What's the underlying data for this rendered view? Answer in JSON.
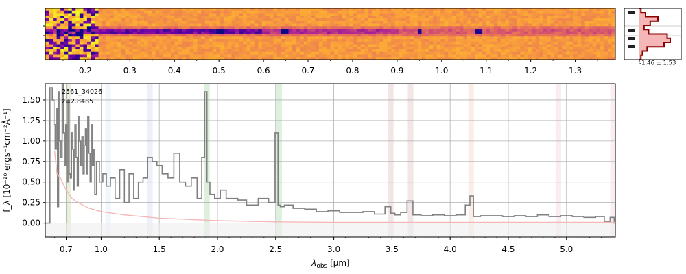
{
  "chart_data": [
    {
      "type": "heatmap",
      "name": "2d-spectrum",
      "x_unit": "um",
      "x_ticks": [
        "0.2",
        "0.3",
        "0.4",
        "0.5",
        "0.6",
        "0.7",
        "0.8",
        "0.9",
        "1.0",
        "1.1",
        "1.2",
        "1.3"
      ],
      "x_tick_values": [
        0.2,
        0.3,
        0.4,
        0.5,
        0.6,
        0.7,
        0.8,
        0.9,
        1.0,
        1.1,
        1.2,
        1.3
      ],
      "xlim": [
        0.11,
        1.39
      ],
      "rows": 20,
      "trace_rows": [
        8,
        9
      ],
      "emission_features_x": [
        0.5,
        0.648,
        0.95,
        1.085
      ],
      "colormap": [
        "#0d0887",
        "#6a00a8",
        "#b12a90",
        "#e16462",
        "#fca636",
        "#f0f921"
      ]
    },
    {
      "type": "line",
      "name": "spatial-profile",
      "annotation": "-1.46 ± 1.53",
      "profile": [
        0.05,
        0.2,
        0.6,
        0.35,
        0.15,
        0.3,
        0.9,
        1.0,
        0.8,
        0.25,
        0.1,
        0.05
      ],
      "colors": {
        "line": "#8b0000",
        "fill": "#f4b6b6",
        "marker": "#222222"
      }
    },
    {
      "type": "line",
      "name": "1d-spectrum",
      "object_label": "2561_34026",
      "redshift_label": "z=2.8485",
      "xlabel_main": "λ",
      "xlabel_sub": "obs",
      "xlabel_unit": "[μm]",
      "ylabel": "f_λ [10⁻²⁰ ergs⁻¹cm⁻²Å⁻¹]",
      "xlim": [
        0.52,
        5.42
      ],
      "ylim": [
        -0.17,
        1.7
      ],
      "x_ticks": [
        "0.7",
        "1.0",
        "1.5",
        "2.0",
        "2.5",
        "3.0",
        "3.5",
        "4.0",
        "4.5",
        "5.0"
      ],
      "x_tick_values": [
        0.7,
        1.0,
        1.5,
        2.0,
        2.5,
        3.0,
        3.5,
        4.0,
        4.5,
        5.0
      ],
      "y_ticks": [
        "0.00",
        "0.25",
        "0.50",
        "0.75",
        "1.00",
        "1.25",
        "1.50"
      ],
      "y_tick_values": [
        0,
        0.25,
        0.5,
        0.75,
        1.0,
        1.25,
        1.5
      ],
      "grid": true,
      "line_bands": [
        {
          "x": 0.72,
          "color": "#bcd59a"
        },
        {
          "x": 1.06,
          "color": "#d6e6f5"
        },
        {
          "x": 1.42,
          "color": "#cfd3ee"
        },
        {
          "x": 1.91,
          "color": "#9fd59f"
        },
        {
          "x": 2.53,
          "color": "#9fd59f"
        },
        {
          "x": 3.49,
          "color": "#d9b8b8"
        },
        {
          "x": 3.66,
          "color": "#d9b8b8"
        },
        {
          "x": 4.18,
          "color": "#f7cdb8"
        },
        {
          "x": 4.93,
          "color": "#f1c8dc"
        },
        {
          "x": 5.4,
          "color": "#f1c8dc"
        }
      ],
      "series": [
        {
          "name": "flux",
          "color": "#808080",
          "x": [
            0.52,
            0.55,
            0.57,
            0.59,
            0.6,
            0.61,
            0.62,
            0.63,
            0.64,
            0.65,
            0.66,
            0.67,
            0.68,
            0.69,
            0.7,
            0.71,
            0.72,
            0.73,
            0.74,
            0.75,
            0.76,
            0.77,
            0.78,
            0.79,
            0.8,
            0.81,
            0.82,
            0.83,
            0.84,
            0.85,
            0.86,
            0.87,
            0.88,
            0.89,
            0.9,
            0.91,
            0.92,
            0.93,
            0.94,
            0.95,
            0.97,
            1.0,
            1.03,
            1.06,
            1.1,
            1.14,
            1.18,
            1.22,
            1.26,
            1.3,
            1.34,
            1.38,
            1.42,
            1.46,
            1.5,
            1.55,
            1.6,
            1.65,
            1.7,
            1.75,
            1.8,
            1.85,
            1.88,
            1.9,
            1.92,
            1.95,
            2.0,
            2.05,
            2.1,
            2.15,
            2.2,
            2.3,
            2.4,
            2.48,
            2.51,
            2.53,
            2.55,
            2.6,
            2.7,
            2.8,
            2.9,
            3.0,
            3.1,
            3.2,
            3.3,
            3.4,
            3.48,
            3.5,
            3.55,
            3.6,
            3.66,
            3.7,
            3.8,
            3.9,
            4.0,
            4.1,
            4.16,
            4.18,
            4.22,
            4.3,
            4.4,
            4.5,
            4.6,
            4.7,
            4.8,
            4.9,
            5.0,
            5.1,
            5.2,
            5.3,
            5.35,
            5.4,
            5.42
          ],
          "y": [
            0.0,
            0.0,
            1.65,
            1.5,
            1.2,
            0.9,
            1.4,
            0.2,
            1.6,
            1.0,
            0.8,
            1.7,
            1.1,
            0.7,
            1.2,
            0.5,
            1.5,
            0.6,
            0.55,
            1.1,
            0.9,
            0.4,
            1.2,
            0.8,
            0.45,
            1.3,
            1.0,
            0.7,
            1.05,
            0.6,
            0.95,
            1.15,
            0.6,
            1.3,
            0.85,
            0.5,
            1.2,
            0.7,
            0.9,
            0.35,
            0.75,
            0.5,
            0.6,
            0.45,
            0.55,
            0.3,
            0.65,
            0.25,
            0.6,
            0.3,
            0.5,
            0.55,
            0.8,
            0.75,
            0.7,
            0.6,
            0.55,
            0.85,
            0.5,
            0.45,
            0.55,
            0.3,
            0.8,
            1.6,
            0.5,
            0.35,
            0.3,
            0.4,
            0.3,
            0.3,
            0.28,
            0.22,
            0.3,
            0.25,
            1.1,
            0.22,
            0.2,
            0.22,
            0.18,
            0.17,
            0.14,
            0.15,
            0.13,
            0.13,
            0.14,
            0.11,
            0.2,
            0.12,
            0.1,
            0.13,
            0.27,
            0.1,
            0.09,
            0.1,
            0.09,
            0.1,
            0.22,
            0.33,
            0.08,
            0.09,
            0.09,
            0.08,
            0.09,
            0.08,
            0.1,
            0.08,
            0.09,
            0.08,
            0.07,
            0.08,
            0.02,
            0.07,
            0.0
          ]
        },
        {
          "name": "error",
          "color": "#f4b8b8",
          "x": [
            0.6,
            0.62,
            0.65,
            0.7,
            0.75,
            0.8,
            0.9,
            1.0,
            1.2,
            1.5,
            2.0,
            2.5,
            3.0,
            4.0,
            5.0,
            5.42
          ],
          "y": [
            0.88,
            0.6,
            0.55,
            0.4,
            0.3,
            0.25,
            0.18,
            0.14,
            0.1,
            0.06,
            0.03,
            0.015,
            0.01,
            0.01,
            0.01,
            0.01
          ]
        }
      ]
    }
  ]
}
